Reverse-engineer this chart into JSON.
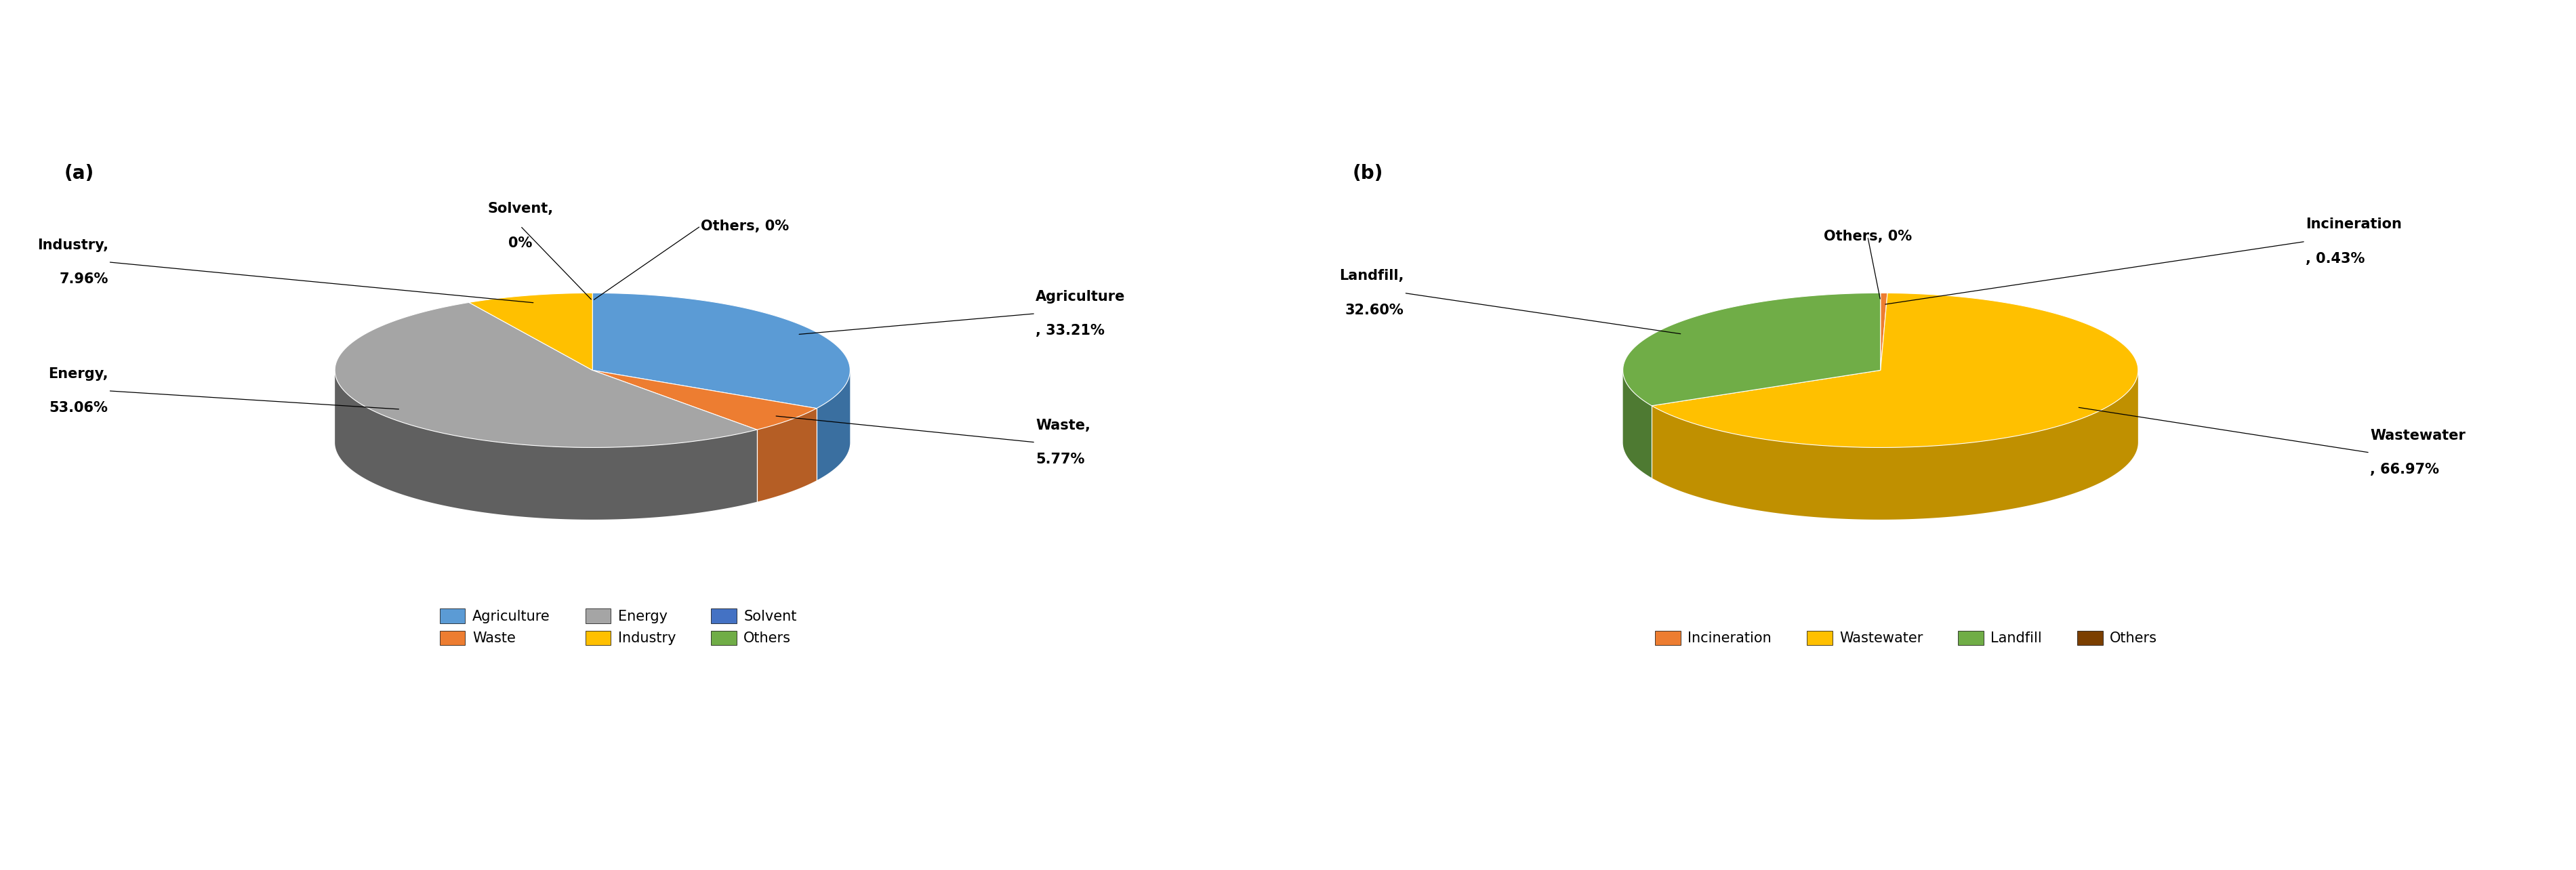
{
  "chart_a": {
    "labels": [
      "Agriculture",
      "Waste",
      "Energy",
      "Industry",
      "Solvent",
      "Others"
    ],
    "values": [
      33.21,
      5.77,
      53.06,
      7.96,
      0.0,
      0.0
    ],
    "colors": [
      "#5B9BD5",
      "#ED7D31",
      "#A5A5A5",
      "#FFC000",
      "#4472C4",
      "#70AD47"
    ],
    "shadow_colors": [
      "#3A6FA0",
      "#B55E25",
      "#606060",
      "#C09000",
      "#2E4E8C",
      "#4E7A32"
    ],
    "label_texts": [
      [
        "Agriculture",
        ", 33.21%"
      ],
      [
        "Waste,",
        "5.77%"
      ],
      [
        "Energy,",
        "53.06%"
      ],
      [
        "Industry,",
        "7.96%"
      ],
      [
        "Solvent,",
        "0%"
      ],
      [
        "Others, 0%",
        ""
      ]
    ],
    "title": "(a)",
    "legend_labels": [
      "Agriculture",
      "Waste",
      "Energy",
      "Industry",
      "Solvent",
      "Others"
    ]
  },
  "chart_b": {
    "labels": [
      "Incineration",
      "Wastewater",
      "Landfill",
      "Others"
    ],
    "values": [
      0.43,
      66.97,
      32.6,
      0.0
    ],
    "colors": [
      "#ED7D31",
      "#FFC000",
      "#70AD47",
      "#7B3F00"
    ],
    "shadow_colors": [
      "#B55E25",
      "#C09000",
      "#4E7A32",
      "#4A2500"
    ],
    "label_texts": [
      [
        "Incineration",
        ", 0.43%"
      ],
      [
        "Wastewater",
        ", 66.97%"
      ],
      [
        "Landfill,",
        "32.60%"
      ],
      [
        "Others, 0%",
        ""
      ]
    ],
    "title": "(b)",
    "legend_labels": [
      "Incineration",
      "Wastewater",
      "Landfill",
      "Others"
    ]
  },
  "background_color": "#FFFFFF",
  "label_fontsize": 15,
  "title_fontsize": 20,
  "legend_fontsize": 15
}
